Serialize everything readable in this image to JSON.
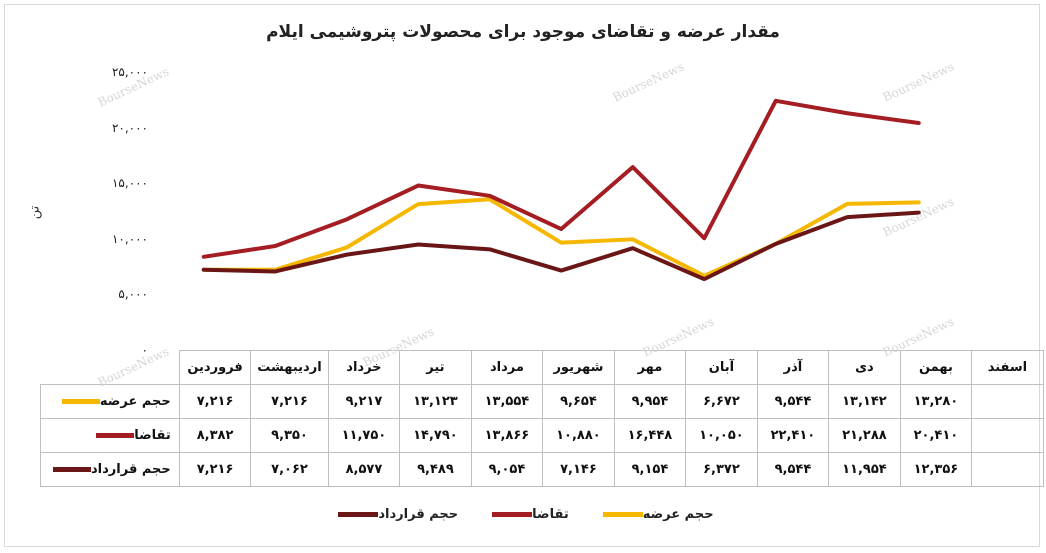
{
  "chart_data": {
    "type": "line",
    "title": "مقدار عرضه و تقاضای موجود برای محصولات پتروشیمی ایلام",
    "ylabel": "تن",
    "ylim": [
      0,
      25000
    ],
    "yticks": [
      0,
      5000,
      10000,
      15000,
      20000,
      25000
    ],
    "ytick_labels": [
      "۰",
      "۵,۰۰۰",
      "۱۰,۰۰۰",
      "۱۵,۰۰۰",
      "۲۰,۰۰۰",
      "۲۵,۰۰۰"
    ],
    "categories": [
      "فروردین",
      "اردیبهشت",
      "خرداد",
      "تیر",
      "مرداد",
      "شهریور",
      "مهر",
      "آبان",
      "آذر",
      "دی",
      "بهمن",
      "اسفند"
    ],
    "series": [
      {
        "name": "حجم عرضه",
        "color": "#f5b700",
        "values": [
          7216,
          7216,
          9217,
          13123,
          13554,
          9654,
          9954,
          6672,
          9544,
          13142,
          13280,
          null
        ],
        "labels": [
          "۷,۲۱۶",
          "۷,۲۱۶",
          "۹,۲۱۷",
          "۱۳,۱۲۳",
          "۱۳,۵۵۴",
          "۹,۶۵۴",
          "۹,۹۵۴",
          "۶,۶۷۲",
          "۹,۵۴۴",
          "۱۳,۱۴۲",
          "۱۳,۲۸۰",
          ""
        ]
      },
      {
        "name": "تقاضا",
        "color": "#a31d22",
        "values": [
          8382,
          9350,
          11750,
          14790,
          13866,
          10880,
          16448,
          10050,
          22410,
          21288,
          20410,
          null
        ],
        "labels": [
          "۸,۳۸۲",
          "۹,۳۵۰",
          "۱۱,۷۵۰",
          "۱۴,۷۹۰",
          "۱۳,۸۶۶",
          "۱۰,۸۸۰",
          "۱۶,۴۴۸",
          "۱۰,۰۵۰",
          "۲۲,۴۱۰",
          "۲۱,۲۸۸",
          "۲۰,۴۱۰",
          ""
        ]
      },
      {
        "name": "حجم قرارداد",
        "color": "#6b1616",
        "values": [
          7216,
          7062,
          8577,
          9489,
          9054,
          7146,
          9154,
          6372,
          9544,
          11954,
          12356,
          null
        ],
        "labels": [
          "۷,۲۱۶",
          "۷,۰۶۲",
          "۸,۵۷۷",
          "۹,۴۸۹",
          "۹,۰۵۴",
          "۷,۱۴۶",
          "۹,۱۵۴",
          "۶,۳۷۲",
          "۹,۵۴۴",
          "۱۱,۹۵۴",
          "۱۲,۳۵۶",
          ""
        ]
      }
    ],
    "legend": "bottom",
    "grid": false,
    "watermark": "BourseNews"
  }
}
